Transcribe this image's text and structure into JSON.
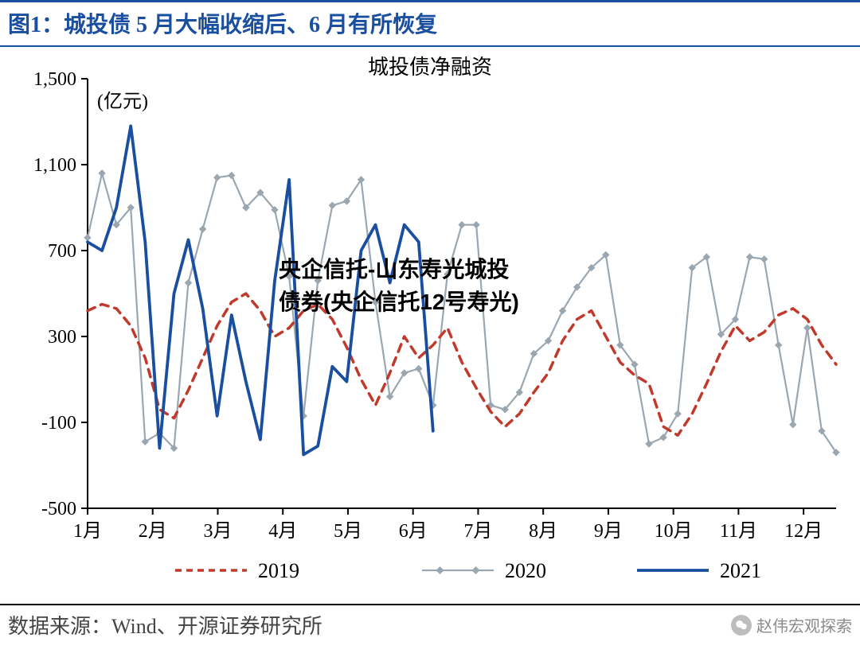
{
  "figure_label": "图1：城投债 5 月大幅收缩后、6 月有所恢复",
  "overlay_text": "央企信托-山东寿光城投债券(央企信托12号寿光)",
  "data_source": "数据来源：Wind、开源证券研究所",
  "wechat_name": "赵伟宏观探索",
  "chart": {
    "type": "line",
    "title": "城投债净融资",
    "title_fontsize": 26,
    "unit_label": "(亿元)",
    "unit_fontsize": 24,
    "ylim": [
      -500,
      1500
    ],
    "ytick_step": 400,
    "yticks": [
      "-500",
      "-100",
      "300",
      "700",
      "1,100",
      "1,500"
    ],
    "x_labels": [
      "1月",
      "2月",
      "3月",
      "4月",
      "5月",
      "6月",
      "7月",
      "8月",
      "9月",
      "10月",
      "11月",
      "12月"
    ],
    "x_max_weeks": 53,
    "axis_color": "#000000",
    "axis_width": 2,
    "grid_on": false,
    "background_color": "#ffffff",
    "legend": {
      "items": [
        {
          "label": "2019",
          "color": "#c0392b",
          "dash": "8,6",
          "marker": "none",
          "width": 3.5
        },
        {
          "label": "2020",
          "color": "#9aa7b0",
          "dash": "0",
          "marker": "diamond",
          "width": 2.2
        },
        {
          "label": "2021",
          "color": "#1a4fa0",
          "dash": "0",
          "marker": "none",
          "width": 3.8
        }
      ],
      "fontsize": 26
    },
    "series": {
      "s2019": {
        "label": "2019",
        "color": "#c0392b",
        "dash": "10,8",
        "width": 3.5,
        "marker": "none",
        "y": [
          420,
          450,
          430,
          350,
          200,
          -40,
          -80,
          50,
          200,
          350,
          460,
          500,
          420,
          300,
          340,
          420,
          450,
          380,
          250,
          100,
          -20,
          130,
          300,
          200,
          260,
          340,
          180,
          60,
          -50,
          -120,
          -60,
          40,
          130,
          280,
          380,
          420,
          300,
          180,
          120,
          80,
          -120,
          -160,
          -60,
          80,
          230,
          350,
          280,
          320,
          400,
          430,
          380,
          260,
          170
        ]
      },
      "s2020": {
        "label": "2020",
        "color": "#9aa7b0",
        "dash": "0",
        "width": 2.2,
        "marker": "diamond",
        "marker_size": 4,
        "y": [
          760,
          1060,
          820,
          900,
          -190,
          -150,
          -220,
          550,
          800,
          1040,
          1050,
          900,
          970,
          890,
          580,
          -70,
          560,
          910,
          930,
          1030,
          460,
          20,
          130,
          150,
          -20,
          590,
          820,
          820,
          -20,
          -40,
          40,
          220,
          280,
          420,
          530,
          620,
          680,
          260,
          170,
          -200,
          -170,
          -60,
          620,
          670,
          310,
          380,
          670,
          660,
          260,
          -110,
          340,
          -140,
          -240
        ]
      },
      "s2021": {
        "label": "2021",
        "color": "#1a4fa0",
        "width": 3.8,
        "dash": "0",
        "marker": "none",
        "y": [
          740,
          700,
          900,
          1280,
          740,
          -220,
          500,
          750,
          430,
          -70,
          400,
          90,
          -180,
          560,
          1030,
          -250,
          -210,
          160,
          90,
          700,
          820,
          550,
          820,
          740,
          -140
        ]
      }
    }
  }
}
